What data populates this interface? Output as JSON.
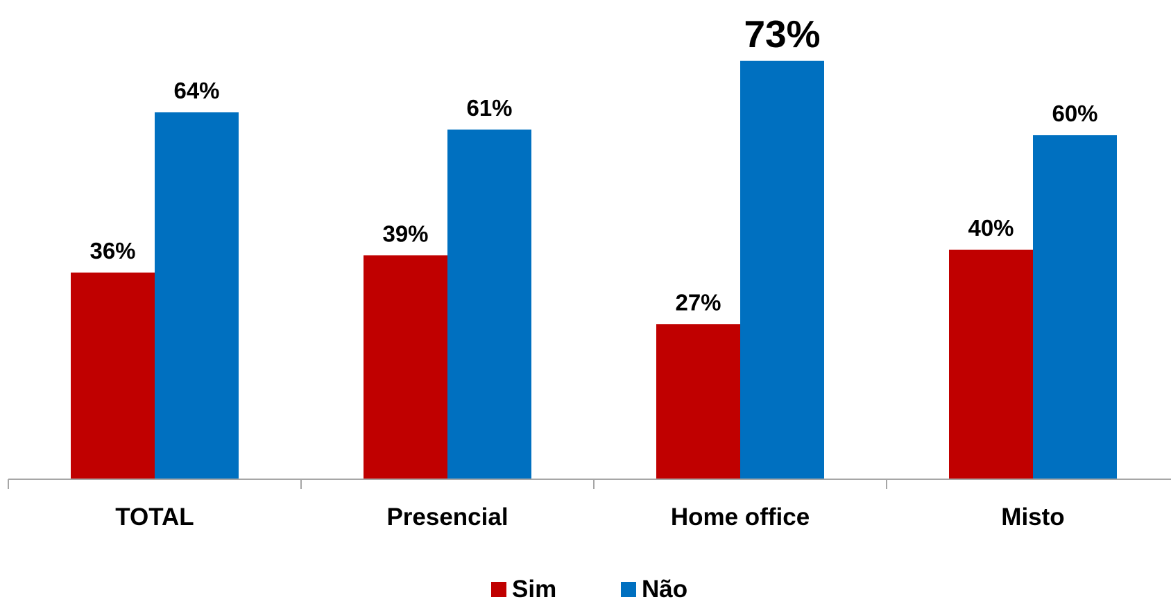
{
  "chart_data": {
    "type": "bar",
    "categories": [
      "TOTAL",
      "Presencial",
      "Home office",
      "Misto"
    ],
    "series": [
      {
        "name": "Sim",
        "color": "#C00000",
        "values": [
          36,
          39,
          27,
          40
        ],
        "labels": [
          "36%",
          "39%",
          "27%",
          "40%"
        ]
      },
      {
        "name": "Não",
        "color": "#0070C0",
        "values": [
          64,
          61,
          73,
          60
        ],
        "labels": [
          "64%",
          "61%",
          "73%",
          "60%"
        ]
      }
    ],
    "title": "",
    "xlabel": "",
    "ylabel": "",
    "ylim": [
      0,
      100
    ],
    "value_unit": "%",
    "grid": false,
    "legend": {
      "position": "bottom",
      "items": [
        "Sim",
        "Não"
      ]
    },
    "axis_color": "#A6A6A6",
    "emphasized_label": "73%"
  }
}
